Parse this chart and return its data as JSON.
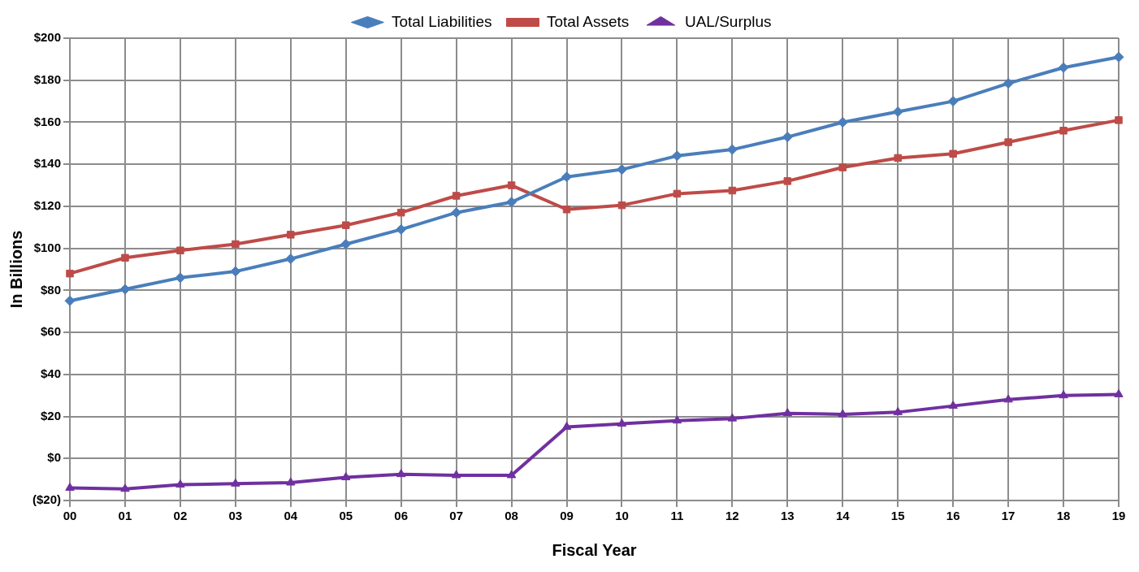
{
  "chart_data": {
    "type": "line",
    "xlabel": "Fiscal Year",
    "ylabel": "In Billions",
    "categories": [
      "00",
      "01",
      "02",
      "03",
      "04",
      "05",
      "06",
      "07",
      "08",
      "09",
      "10",
      "11",
      "12",
      "13",
      "14",
      "15",
      "16",
      "17",
      "18",
      "19"
    ],
    "series": [
      {
        "name": "Total Liabilities",
        "color": "#4a7ebb",
        "marker": "diamond",
        "values": [
          75,
          80.5,
          86,
          89,
          95,
          102,
          109,
          117,
          122,
          134,
          137.5,
          144,
          147,
          153,
          160,
          165,
          170,
          178.5,
          186,
          191
        ]
      },
      {
        "name": "Total Assets",
        "color": "#be4b48",
        "marker": "square",
        "values": [
          88,
          95.5,
          99,
          102,
          106.5,
          111,
          117,
          125,
          130,
          118.5,
          120.5,
          126,
          127.5,
          132,
          138.5,
          143,
          145,
          150.5,
          156,
          161
        ]
      },
      {
        "name": "UAL/Surplus",
        "color": "#7030a0",
        "marker": "triangle",
        "values": [
          -14,
          -14.5,
          -12.5,
          -12,
          -11.5,
          -9,
          -7.5,
          -8,
          -8,
          15,
          16.5,
          18,
          19,
          21.5,
          21,
          22,
          25,
          28,
          30,
          30.5
        ]
      }
    ],
    "ylim": [
      -20,
      200
    ],
    "yticks": [
      {
        "value": -20,
        "label": "($20)"
      },
      {
        "value": 0,
        "label": "$0"
      },
      {
        "value": 20,
        "label": "$20"
      },
      {
        "value": 40,
        "label": "$40"
      },
      {
        "value": 60,
        "label": "$60"
      },
      {
        "value": 80,
        "label": "$80"
      },
      {
        "value": 100,
        "label": "$100"
      },
      {
        "value": 120,
        "label": "$120"
      },
      {
        "value": 140,
        "label": "$140"
      },
      {
        "value": 160,
        "label": "$160"
      },
      {
        "value": 180,
        "label": "$180"
      },
      {
        "value": 200,
        "label": "$200"
      }
    ],
    "grid": true,
    "legend": "top",
    "line_style": "solid"
  }
}
